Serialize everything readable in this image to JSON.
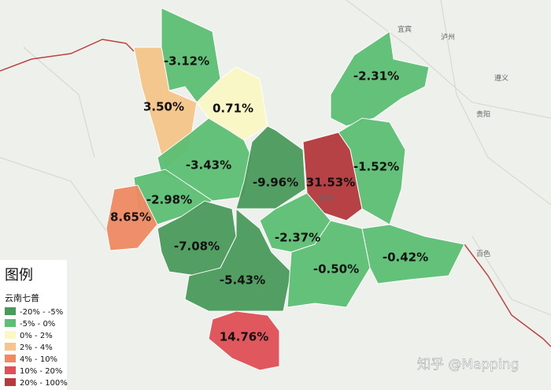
{
  "map": {
    "regions": [
      {
        "label": "-3.12%",
        "color": "#5cbf73"
      },
      {
        "label": "3.50%",
        "color": "#f5c58a"
      },
      {
        "label": "0.71%",
        "color": "#fbf8c4"
      },
      {
        "label": "-2.31%",
        "color": "#5cbf73"
      },
      {
        "label": "-3.43%",
        "color": "#5cbf73"
      },
      {
        "label": "-9.96%",
        "color": "#4a9a5c"
      },
      {
        "label": "31.53%",
        "color": "#b5393e"
      },
      {
        "label": "-1.52%",
        "color": "#5cbf73"
      },
      {
        "label": "-2.98%",
        "color": "#5cbf73"
      },
      {
        "label": "8.65%",
        "color": "#ef8a62"
      },
      {
        "label": "-7.08%",
        "color": "#4a9a5c"
      },
      {
        "label": "-5.43%",
        "color": "#4a9a5c"
      },
      {
        "label": "-2.37%",
        "color": "#5cbf73"
      },
      {
        "label": "-0.50%",
        "color": "#5cbf73"
      },
      {
        "label": "-0.42%",
        "color": "#5cbf73"
      },
      {
        "label": "14.76%",
        "color": "#e05056"
      }
    ],
    "place_names": [
      "贵阳",
      "百色",
      "遵义",
      "宜宾",
      "泸州",
      "昆明"
    ],
    "legend": {
      "title": "图例",
      "subtitle": "云南七普",
      "items": [
        {
          "label": "-20% - -5%",
          "color": "#4a9a5c"
        },
        {
          "label": "-5% - 0%",
          "color": "#5cbf73"
        },
        {
          "label": "0% - 2%",
          "color": "#fbf8c4"
        },
        {
          "label": "2% - 4%",
          "color": "#f5c58a"
        },
        {
          "label": "4% - 10%",
          "color": "#ef8a62"
        },
        {
          "label": "10% - 20%",
          "color": "#e05056"
        },
        {
          "label": "20% - 100%",
          "color": "#b5393e"
        }
      ]
    },
    "watermark": "知乎 @Mapping"
  }
}
